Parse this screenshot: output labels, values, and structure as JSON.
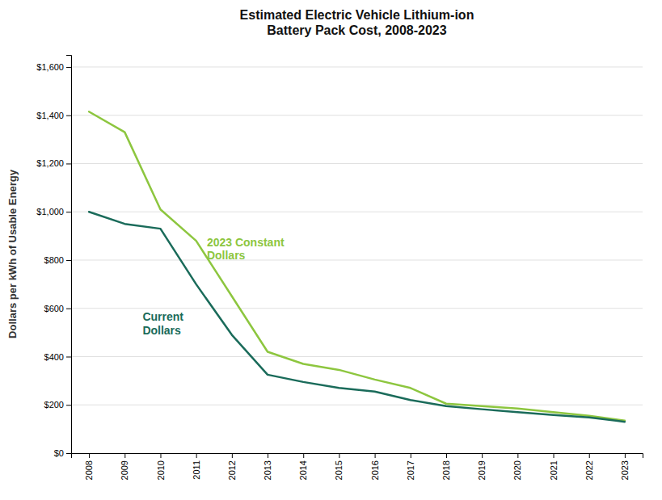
{
  "chart_data": {
    "type": "line",
    "title": "Estimated Electric Vehicle Lithium-ion\nBattery Pack Cost, 2008-2023",
    "y_label": "Dollars per kWh of Usable Energy",
    "x": [
      2008,
      2009,
      2010,
      2011,
      2012,
      2013,
      2014,
      2015,
      2016,
      2017,
      2018,
      2019,
      2020,
      2021,
      2022,
      2023
    ],
    "series": [
      {
        "color": "#8dc63f",
        "values": [
          1415,
          1330,
          1010,
          880,
          650,
          420,
          370,
          345,
          305,
          270,
          205,
          195,
          185,
          170,
          155,
          135
        ]
      },
      {
        "color": "#1a6b5a",
        "values": [
          1000,
          950,
          930,
          700,
          490,
          325,
          295,
          270,
          255,
          220,
          195,
          182,
          170,
          158,
          148,
          130
        ]
      }
    ],
    "annotations": [
      {
        "text": "2023 Constant\nDollars",
        "x": 2011.3,
        "y": 900,
        "color": "#8dc63f"
      },
      {
        "text": "Current\nDollars",
        "x": 2009.5,
        "y": 590,
        "color": "#1a6b5a"
      }
    ],
    "xlim": [
      2007.5,
      2023.5
    ],
    "xticks": [
      2008,
      2009,
      2010,
      2011,
      2012,
      2013,
      2014,
      2015,
      2016,
      2017,
      2018,
      2019,
      2020,
      2021,
      2022,
      2023
    ],
    "ylim": [
      0,
      1650
    ],
    "yticks": [
      {
        "value": 0,
        "label": "$0"
      },
      {
        "value": 200,
        "label": "$200"
      },
      {
        "value": 400,
        "label": "$400"
      },
      {
        "value": 600,
        "label": "$600"
      },
      {
        "value": 800,
        "label": "$800"
      },
      {
        "value": 1000,
        "label": "$1,000"
      },
      {
        "value": 1200,
        "label": "$1,200"
      },
      {
        "value": 1400,
        "label": "$1,400"
      },
      {
        "value": 1600,
        "label": "$1,600"
      }
    ],
    "grid": true
  }
}
